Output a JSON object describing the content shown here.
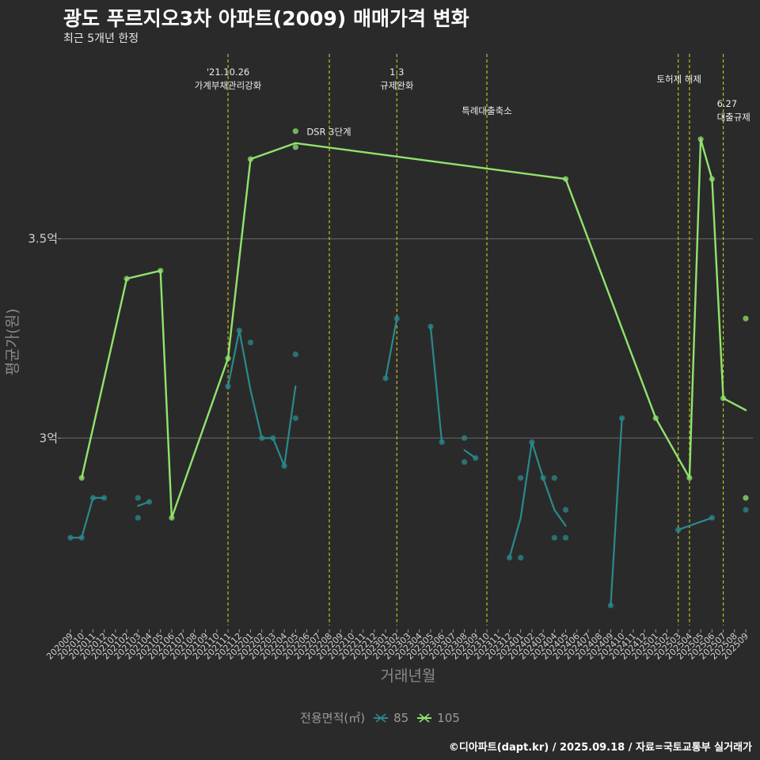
{
  "title": "광도 푸르지오3차 아파트(2009) 매매가격 변화",
  "subtitle": "최근 5개년 한정",
  "footer": "©디아파트(dapt.kr) / 2025.09.18 / 자료=국토교통부 실거래가",
  "legend": {
    "title": "전용면적(㎡)",
    "items": [
      "85",
      "105"
    ]
  },
  "chart_data": {
    "type": "line",
    "xlabel": "거래년월",
    "ylabel": "평균가(원)",
    "categories": [
      "202009",
      "202010",
      "202011",
      "202012",
      "202101",
      "202102",
      "202103",
      "202104",
      "202105",
      "202106",
      "202107",
      "202108",
      "202109",
      "202110",
      "202111",
      "202112",
      "202201",
      "202202",
      "202203",
      "202204",
      "202205",
      "202206",
      "202207",
      "202208",
      "202209",
      "202210",
      "202211",
      "202212",
      "202301",
      "202302",
      "202303",
      "202304",
      "202305",
      "202306",
      "202307",
      "202308",
      "202309",
      "202310",
      "202311",
      "202312",
      "202401",
      "202402",
      "202403",
      "202404",
      "202405",
      "202406",
      "202407",
      "202408",
      "202409",
      "202410",
      "202411",
      "202412",
      "202501",
      "202502",
      "202503",
      "202504",
      "202505",
      "202506",
      "202507",
      "202508",
      "202509"
    ],
    "ylim": [
      2.53,
      3.98
    ],
    "yticks": [
      {
        "value": 3.0,
        "label": "3억"
      },
      {
        "value": 3.5,
        "label": "3.5억"
      }
    ],
    "grid": true,
    "legend_position": "bottom",
    "series": [
      {
        "name": "85",
        "color": "#2a8a8c",
        "line": [
          [
            0,
            2.75
          ],
          [
            1,
            2.75
          ],
          [
            2,
            2.85
          ],
          [
            3,
            2.85
          ],
          null,
          [
            6,
            2.83
          ],
          [
            7,
            2.84
          ],
          null,
          [
            14,
            3.13
          ],
          [
            15,
            3.27
          ],
          [
            16,
            3.12
          ],
          [
            17,
            3.0
          ],
          [
            18,
            3.0
          ],
          [
            19,
            2.93
          ],
          [
            20,
            3.13
          ],
          null,
          [
            28,
            3.15
          ],
          [
            29,
            3.3
          ],
          null,
          [
            32,
            3.28
          ],
          [
            33,
            2.99
          ],
          null,
          [
            35,
            2.97
          ],
          [
            36,
            2.95
          ],
          null,
          [
            39,
            2.7
          ],
          [
            40,
            2.8
          ],
          [
            41,
            2.99
          ],
          [
            42,
            2.9
          ],
          [
            43,
            2.82
          ],
          [
            44,
            2.78
          ],
          null,
          [
            48,
            2.58
          ],
          [
            49,
            3.05
          ],
          null,
          [
            54,
            2.77
          ],
          [
            55,
            2.78
          ],
          [
            56,
            2.79
          ],
          [
            57,
            2.8
          ]
        ],
        "points": [
          [
            0,
            2.75
          ],
          [
            1,
            2.75
          ],
          [
            2,
            2.85
          ],
          [
            3,
            2.85
          ],
          [
            6,
            2.85
          ],
          [
            6,
            2.8
          ],
          [
            7,
            2.84
          ],
          [
            14,
            3.13
          ],
          [
            15,
            3.27
          ],
          [
            16,
            3.24
          ],
          [
            17,
            3.0
          ],
          [
            18,
            3.0
          ],
          [
            19,
            2.93
          ],
          [
            20,
            3.21
          ],
          [
            20,
            3.05
          ],
          [
            28,
            3.15
          ],
          [
            29,
            3.3
          ],
          [
            32,
            3.28
          ],
          [
            33,
            2.99
          ],
          [
            35,
            3.0
          ],
          [
            35,
            2.94
          ],
          [
            36,
            2.95
          ],
          [
            39,
            2.7
          ],
          [
            40,
            2.9
          ],
          [
            40,
            2.7
          ],
          [
            41,
            2.99
          ],
          [
            42,
            2.9
          ],
          [
            43,
            2.9
          ],
          [
            43,
            2.75
          ],
          [
            44,
            2.82
          ],
          [
            44,
            2.75
          ],
          [
            48,
            2.58
          ],
          [
            49,
            3.05
          ],
          [
            54,
            2.77
          ],
          [
            57,
            2.8
          ],
          [
            60,
            2.82
          ]
        ]
      },
      {
        "name": "105",
        "color": "#90e46c",
        "line": [
          [
            1,
            2.9
          ],
          [
            5,
            3.4
          ],
          [
            8,
            3.42
          ],
          [
            9,
            2.8
          ],
          [
            14,
            3.2
          ],
          [
            16,
            3.7
          ],
          [
            20,
            3.74
          ],
          [
            44,
            3.65
          ],
          [
            52,
            3.05
          ],
          [
            55,
            2.9
          ],
          [
            56,
            3.75
          ],
          [
            57,
            3.65
          ],
          [
            58,
            3.1
          ],
          [
            60,
            3.07
          ]
        ],
        "points": [
          [
            1,
            2.9
          ],
          [
            5,
            3.4
          ],
          [
            8,
            3.42
          ],
          [
            9,
            2.8
          ],
          [
            14,
            3.2
          ],
          [
            16,
            3.7
          ],
          [
            20,
            3.77
          ],
          [
            20,
            3.73
          ],
          [
            44,
            3.65
          ],
          [
            52,
            3.05
          ],
          [
            55,
            2.9
          ],
          [
            56,
            3.75
          ],
          [
            57,
            3.65
          ],
          [
            58,
            3.1
          ],
          [
            60,
            3.3
          ],
          [
            60,
            2.85
          ]
        ]
      }
    ],
    "annotations": [
      {
        "x": 14,
        "lines": [
          "'21.10.26",
          "가계부채관리강화"
        ],
        "row": 1
      },
      {
        "x": 23,
        "lines": [],
        "row": 1
      },
      {
        "x": 29,
        "lines": [
          "1.3",
          "규제완화"
        ],
        "row": 1
      },
      {
        "x": 37,
        "lines": [
          "특례대출축소"
        ],
        "row": 2
      },
      {
        "x": 54,
        "lines": [
          "토허제 해제"
        ],
        "row": 1
      },
      {
        "x": 55,
        "lines": [],
        "row": 1
      },
      {
        "x": 58,
        "lines": [
          "6.27",
          "대출규제"
        ],
        "row": 3
      }
    ],
    "point_labels": [
      {
        "x": 20,
        "y": 3.77,
        "text": "DSR 3단계"
      }
    ]
  }
}
